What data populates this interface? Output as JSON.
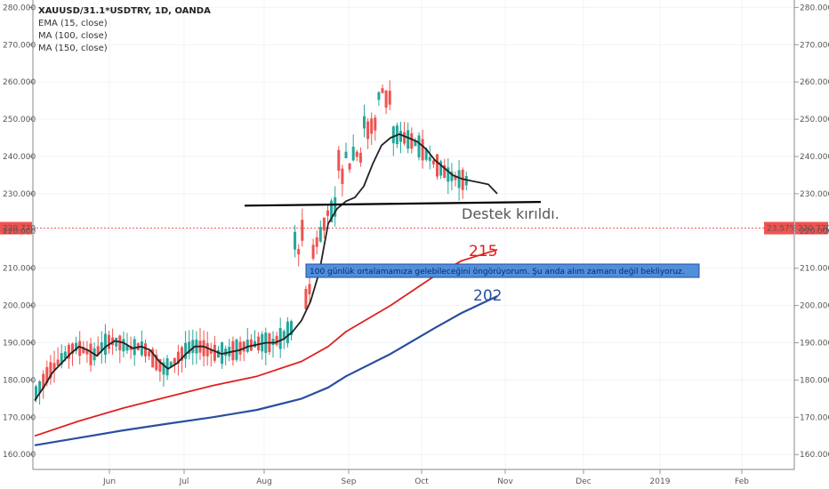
{
  "legend": {
    "symbol": "XAUUSD/31.1*USDTRY, 1D, OANDA",
    "ema": "EMA (15, close)",
    "ma100": "MA (100, close)",
    "ma150": "MA (150, close)"
  },
  "colors": {
    "up": "#26a69a",
    "down": "#ef5350",
    "ema": "#222222",
    "ma100": "#e02020",
    "ma150": "#2a4fa0",
    "support": "#000000",
    "price_line": "#ef5350",
    "note_bg": "#4f8fdc"
  },
  "annotations": {
    "support_text": "Destek kırıldı.",
    "ma100_label": "215",
    "ma150_label": "202",
    "note": "100 günlük ortalamamıza gelebileceğini öngörüyorum. Şu anda alım zamanı değil bekliyoruz."
  },
  "price_tag": {
    "value": "220.770",
    "pct": "23.57%"
  },
  "chart_data": {
    "type": "candlestick",
    "ylim": [
      156,
      282
    ],
    "yticks": [
      "160.000",
      "170.000",
      "180.000",
      "190.000",
      "200.000",
      "210.000",
      "220.000",
      "230.000",
      "240.000",
      "250.000",
      "260.000",
      "270.000",
      "280.000"
    ],
    "xticks": [
      "Jun",
      "Jul",
      "Aug",
      "Sep",
      "Oct",
      "Nov",
      "Dec",
      "2019",
      "Feb"
    ],
    "last_close": 220.77,
    "support_level": [
      226.8,
      227.8
    ],
    "ema15": [
      [
        0,
        174.5
      ],
      [
        10,
        178
      ],
      [
        20,
        182
      ],
      [
        30,
        184.5
      ],
      [
        40,
        187
      ],
      [
        50,
        189
      ],
      [
        60,
        188
      ],
      [
        70,
        186.5
      ],
      [
        80,
        189
      ],
      [
        90,
        190.5
      ],
      [
        100,
        190
      ],
      [
        110,
        188.5
      ],
      [
        120,
        189
      ],
      [
        130,
        188
      ],
      [
        140,
        185
      ],
      [
        150,
        183
      ],
      [
        160,
        184.5
      ],
      [
        170,
        187
      ],
      [
        180,
        189
      ],
      [
        190,
        189
      ],
      [
        200,
        188
      ],
      [
        210,
        187
      ],
      [
        220,
        187.5
      ],
      [
        230,
        188
      ],
      [
        240,
        189
      ],
      [
        250,
        189.5
      ],
      [
        260,
        190
      ],
      [
        270,
        190
      ],
      [
        280,
        191
      ],
      [
        290,
        193
      ],
      [
        300,
        196
      ],
      [
        310,
        201
      ],
      [
        320,
        209
      ],
      [
        330,
        222
      ],
      [
        340,
        226
      ],
      [
        350,
        228
      ],
      [
        360,
        229
      ],
      [
        370,
        232
      ],
      [
        380,
        238
      ],
      [
        390,
        243
      ],
      [
        400,
        245
      ],
      [
        410,
        246
      ],
      [
        420,
        245
      ],
      [
        430,
        244
      ],
      [
        440,
        242
      ],
      [
        450,
        239
      ],
      [
        460,
        237
      ],
      [
        470,
        235
      ],
      [
        480,
        234
      ],
      [
        490,
        233.5
      ],
      [
        500,
        233
      ],
      [
        510,
        232.5
      ],
      [
        520,
        230
      ]
    ],
    "ma100": [
      [
        0,
        165
      ],
      [
        50,
        169
      ],
      [
        100,
        172.5
      ],
      [
        150,
        175.5
      ],
      [
        200,
        178.5
      ],
      [
        250,
        181
      ],
      [
        300,
        185
      ],
      [
        330,
        189
      ],
      [
        350,
        193
      ],
      [
        400,
        200
      ],
      [
        450,
        208
      ],
      [
        480,
        212
      ],
      [
        520,
        215
      ]
    ],
    "ma150": [
      [
        0,
        162.5
      ],
      [
        50,
        164.5
      ],
      [
        100,
        166.5
      ],
      [
        150,
        168.3
      ],
      [
        200,
        170
      ],
      [
        250,
        172
      ],
      [
        300,
        175
      ],
      [
        330,
        178
      ],
      [
        350,
        181
      ],
      [
        400,
        187
      ],
      [
        450,
        194
      ],
      [
        480,
        198
      ],
      [
        520,
        202.5
      ]
    ]
  }
}
